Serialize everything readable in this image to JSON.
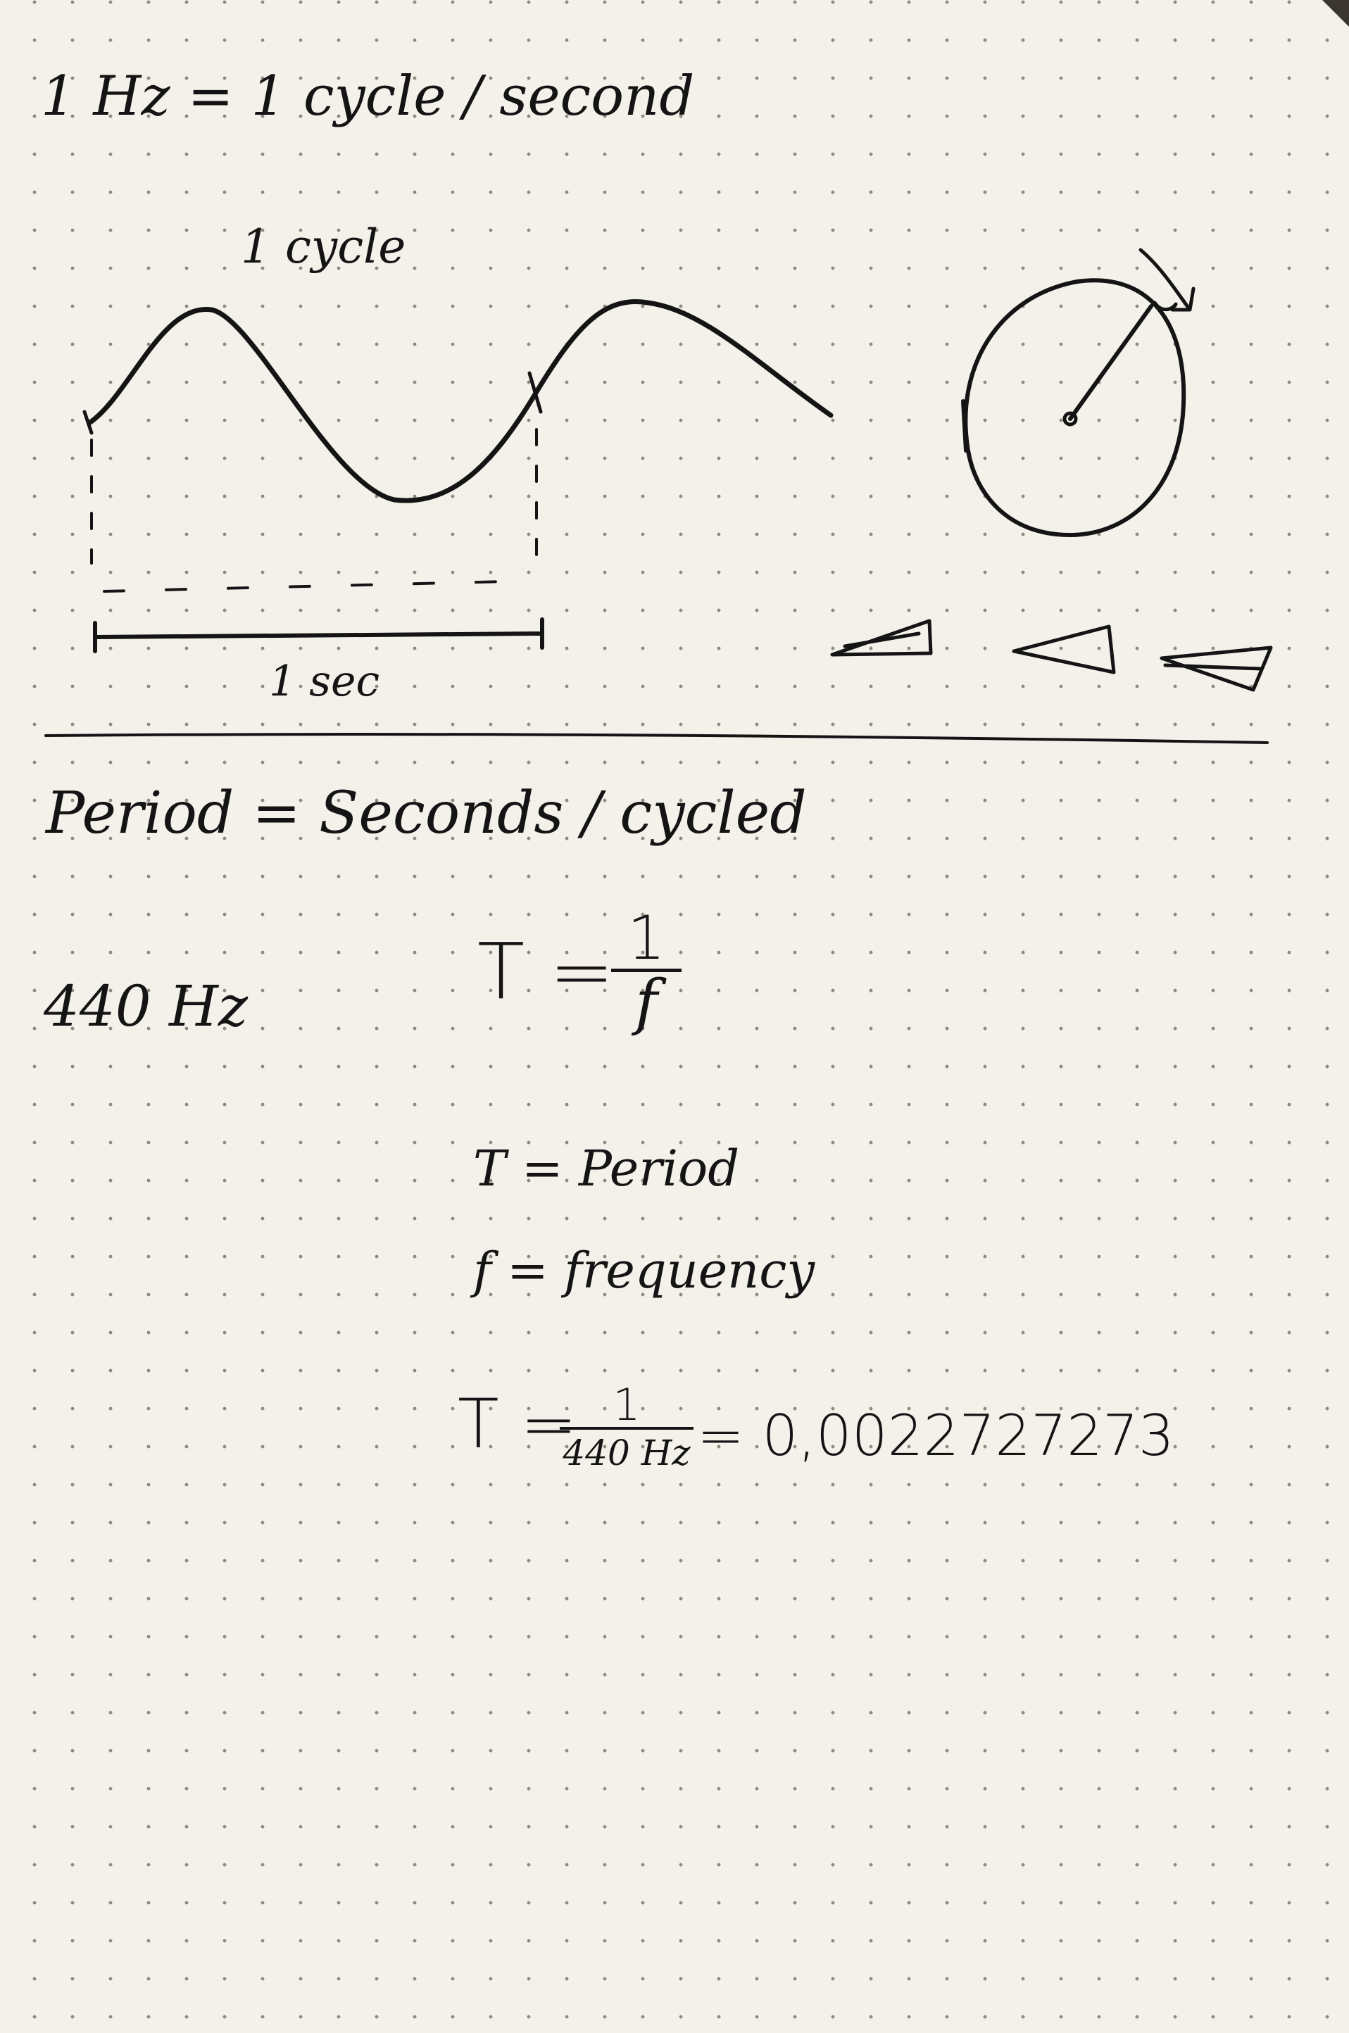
{
  "heading_hz": "1 Hz = 1 cycle / second",
  "diagram": {
    "cycle_label": "1 cycle",
    "duration_label": "1 sec"
  },
  "period": {
    "definition": "Period = Seconds / cycled",
    "example_frequency": "440 Hz",
    "formula": {
      "lhs": "T =",
      "numerator": "1",
      "denominator": "f"
    },
    "legend_T": "T = Period",
    "legend_f": "f = frequency",
    "calc": {
      "lhs": "T =",
      "numerator": "1",
      "denominator": "440 Hz",
      "result": "= 0,0022727273"
    }
  },
  "colors": {
    "ink": "#141414",
    "paper": "#f4f1ea",
    "dot": "#8f8a80"
  }
}
